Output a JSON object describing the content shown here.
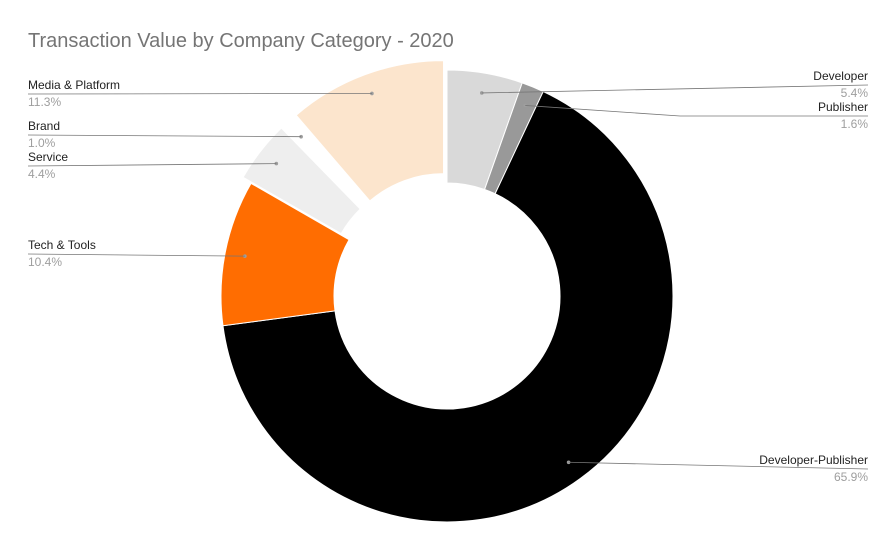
{
  "chart_data": {
    "type": "pie",
    "title": "Transaction Value by Company Category - 2020",
    "donut": true,
    "slices": [
      {
        "name": "Developer",
        "value": 5.4,
        "value_label": "5.4%",
        "color": "#d9d9d9",
        "label_side": "right"
      },
      {
        "name": "Publisher",
        "value": 1.6,
        "value_label": "1.6%",
        "color": "#999999",
        "label_side": "right"
      },
      {
        "name": "Developer-Publisher",
        "value": 65.9,
        "value_label": "65.9%",
        "color": "#000000",
        "label_side": "right"
      },
      {
        "name": "Tech & Tools",
        "value": 10.4,
        "value_label": "10.4%",
        "color": "#ff6d01",
        "label_side": "left"
      },
      {
        "name": "Service",
        "value": 4.4,
        "value_label": "4.4%",
        "color": "#eeeeee",
        "label_side": "left"
      },
      {
        "name": "Brand",
        "value": 1.0,
        "value_label": "1.0%",
        "color": "#ffffff",
        "label_side": "left"
      },
      {
        "name": "Media & Platform",
        "value": 11.3,
        "value_label": "11.3%",
        "color": "#fce5cd",
        "label_side": "left"
      }
    ]
  }
}
